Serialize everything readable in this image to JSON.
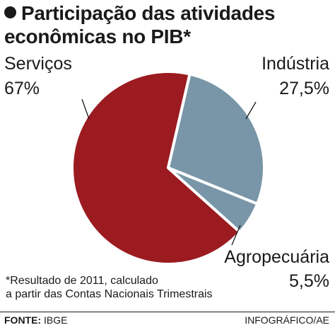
{
  "title": "Participação das atividades econômicas no PIB*",
  "note_lines": [
    "*Resultado de 2011, calculado",
    "a partir das Contas Nacionais Trimestrais"
  ],
  "footer": {
    "source_key": "FONTE:",
    "source_value": "IBGE",
    "credit": "INFOGRÁFICO/AE"
  },
  "colors": {
    "servicos": "#9b1b20",
    "industria": "#7896a8",
    "agropecuaria": "#7896a8",
    "separator": "#ffffff"
  },
  "chart_data": {
    "type": "pie",
    "title": "Participação das atividades econômicas no PIB*",
    "slices": [
      {
        "name": "Serviços",
        "value": 67,
        "label": "67%"
      },
      {
        "name": "Indústria",
        "value": 27.5,
        "label": "27,5%"
      },
      {
        "name": "Agropecuária",
        "value": 5.5,
        "label": "5,5%"
      }
    ],
    "legend": "none"
  }
}
